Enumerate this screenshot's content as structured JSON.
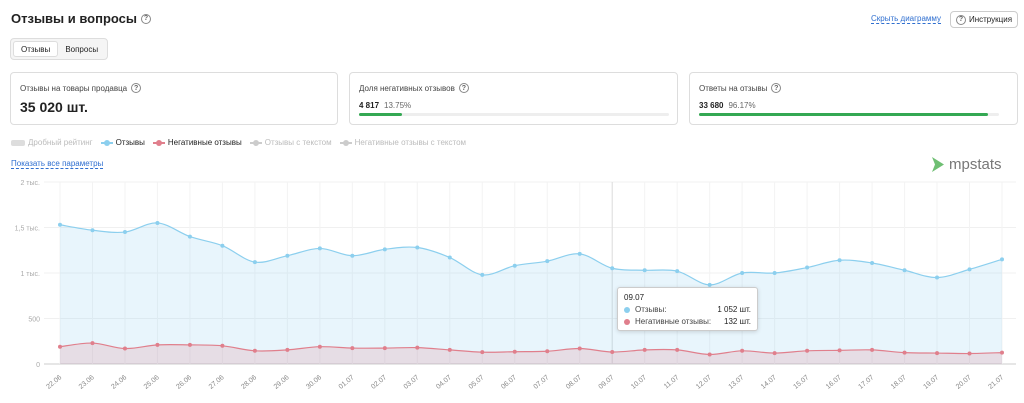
{
  "header": {
    "title": "Отзывы и вопросы",
    "hide_chart": "Скрыть диаграмму",
    "instruction": "Инструкция"
  },
  "tabs": [
    {
      "label": "Отзывы",
      "active": true
    },
    {
      "label": "Вопросы",
      "active": false
    }
  ],
  "cards": {
    "reviews": {
      "label": "Отзывы на товары продавца",
      "value": "35 020 шт."
    },
    "negative": {
      "label": "Доля негативных отзывов",
      "count": "4 817",
      "percent": "13.75%",
      "fraction": 0.1375
    },
    "answers": {
      "label": "Ответы на отзывы",
      "count": "33 680",
      "percent": "96.17%",
      "fraction": 0.9617
    }
  },
  "legend": [
    {
      "label": "Дробный рейтинг",
      "active": false,
      "color": "#dddddd",
      "kind": "rect"
    },
    {
      "label": "Отзывы",
      "active": true,
      "color": "#8ccfee",
      "kind": "line"
    },
    {
      "label": "Негативные отзывы",
      "active": true,
      "color": "#e07f8c",
      "kind": "line"
    },
    {
      "label": "Отзывы с текстом",
      "active": false,
      "color": "#cccccc",
      "kind": "line"
    },
    {
      "label": "Негативные отзывы с текстом",
      "active": false,
      "color": "#cccccc",
      "kind": "line"
    }
  ],
  "show_all": "Показать все параметры",
  "logo": "mpstats",
  "tooltip": {
    "date": "09.07",
    "rows": [
      {
        "label": "Отзывы:",
        "value": "1 052 шт.",
        "color": "#8ccfee"
      },
      {
        "label": "Негативные отзывы:",
        "value": "132 шт.",
        "color": "#e07f8c"
      }
    ]
  },
  "chart_data": {
    "type": "area",
    "x": [
      "22.06",
      "23.06",
      "24.06",
      "25.06",
      "26.06",
      "27.06",
      "28.06",
      "29.06",
      "30.06",
      "01.07",
      "02.07",
      "03.07",
      "04.07",
      "05.07",
      "06.07",
      "07.07",
      "08.07",
      "09.07",
      "10.07",
      "11.07",
      "12.07",
      "13.07",
      "14.07",
      "15.07",
      "16.07",
      "17.07",
      "18.07",
      "19.07",
      "20.07",
      "21.07"
    ],
    "y_ticks": [
      "0",
      "500",
      "1 тыс.",
      "1,5 тыс.",
      "2 тыс."
    ],
    "ylim": [
      0,
      2000
    ],
    "series": [
      {
        "name": "Отзывы",
        "color": "#8ccfee",
        "values": [
          1530,
          1470,
          1450,
          1550,
          1400,
          1300,
          1120,
          1190,
          1270,
          1190,
          1260,
          1280,
          1170,
          980,
          1080,
          1130,
          1210,
          1052,
          1030,
          1020,
          870,
          1000,
          1000,
          1060,
          1140,
          1110,
          1030,
          950,
          1040,
          1150
        ]
      },
      {
        "name": "Негативные отзывы",
        "color": "#e07f8c",
        "values": [
          190,
          230,
          170,
          210,
          210,
          200,
          145,
          155,
          190,
          175,
          175,
          180,
          155,
          130,
          135,
          140,
          170,
          132,
          155,
          155,
          105,
          145,
          120,
          145,
          150,
          155,
          125,
          120,
          115,
          125
        ]
      }
    ]
  }
}
